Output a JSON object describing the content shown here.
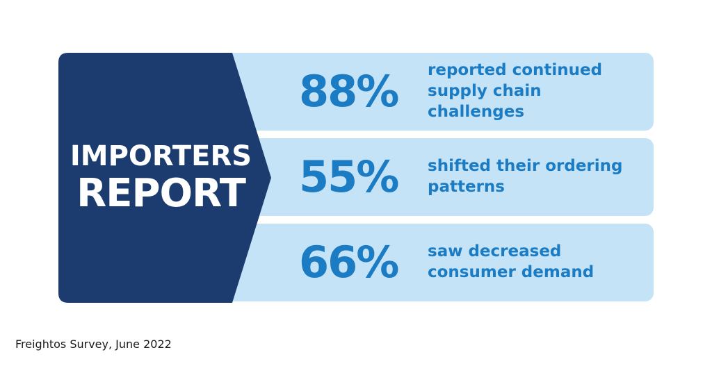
{
  "title": {
    "line1": "IMPORTERS",
    "line2": "REPORT"
  },
  "stats": [
    {
      "value": "88%",
      "description": "reported continued supply chain challenges"
    },
    {
      "value": "55%",
      "description": "shifted their ordering patterns"
    },
    {
      "value": "66%",
      "description": "saw decreased consumer demand"
    }
  ],
  "source": "Freightos Survey, June 2022",
  "colors": {
    "badge": "#1c3c70",
    "row_background": "#c5e3f7",
    "accent_text": "#1b7cc4"
  }
}
